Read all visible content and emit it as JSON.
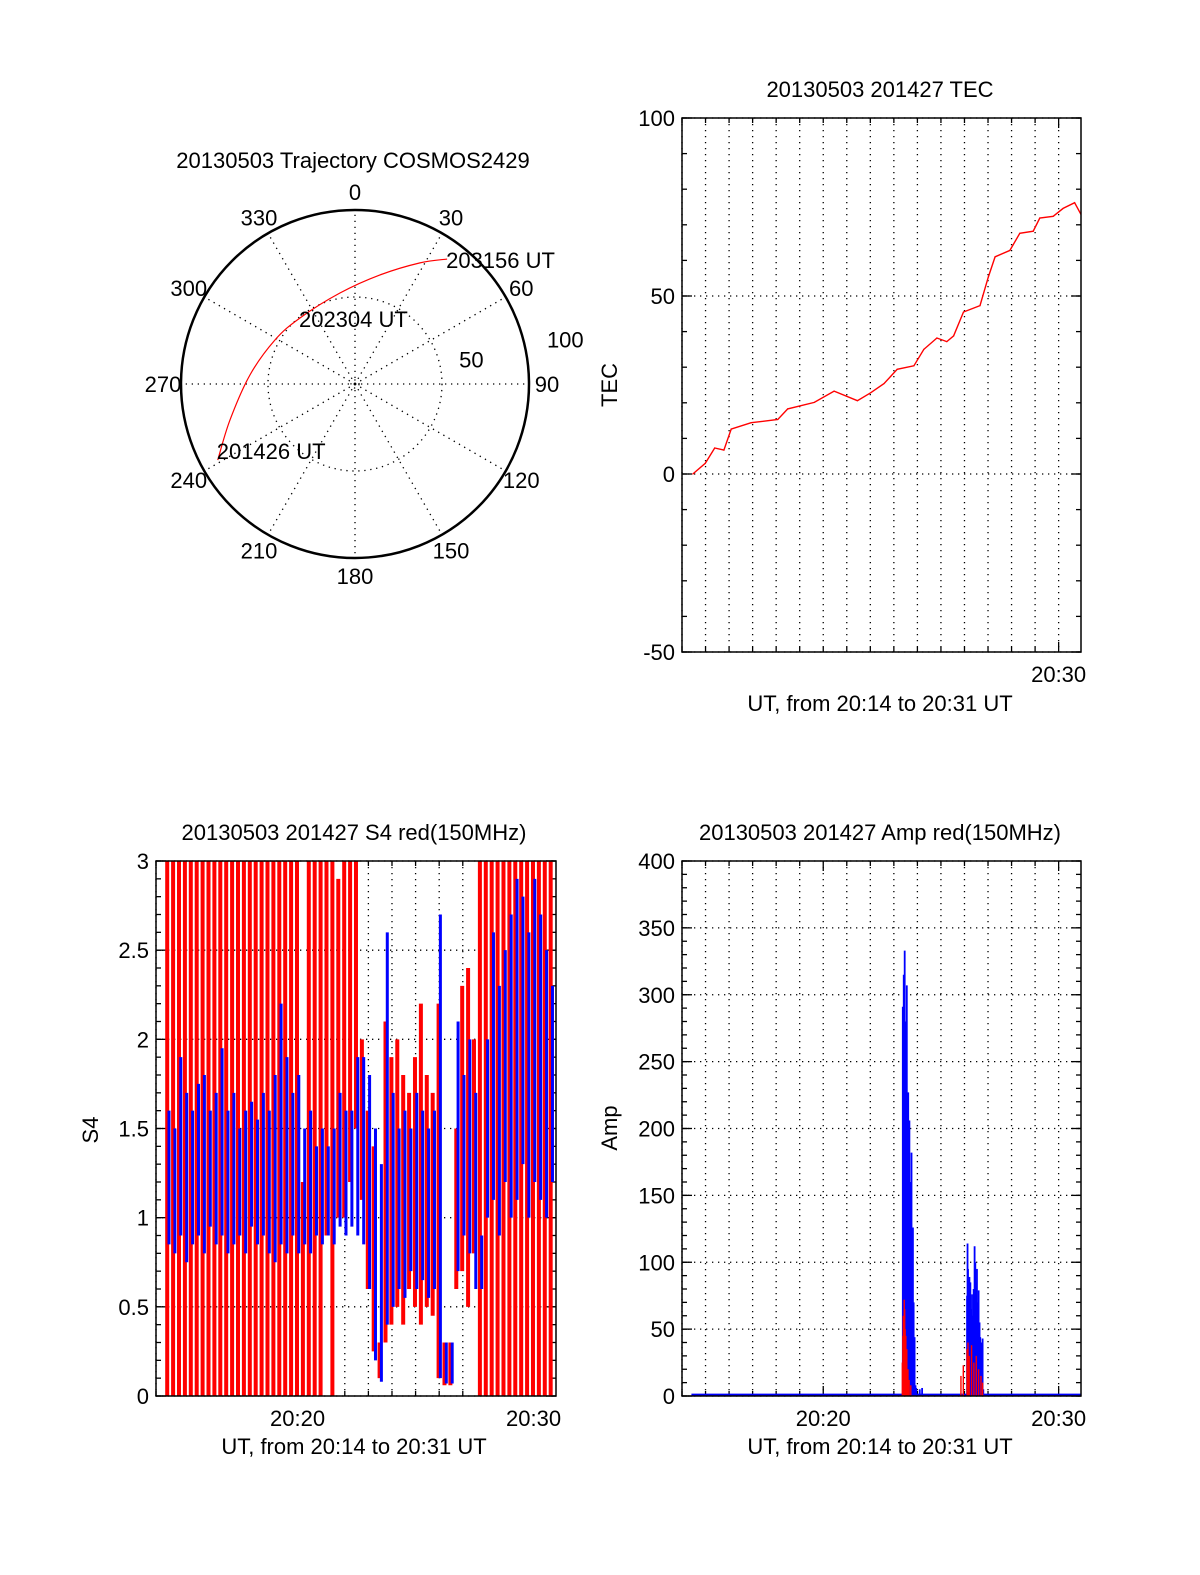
{
  "colors": {
    "red": "#ff0000",
    "blue": "#0000ff",
    "axis": "#000000"
  },
  "chart_data": [
    {
      "id": "polar",
      "type": "polar-trajectory",
      "title": "20130503 Trajectory COSMOS2429",
      "azimuth_labels": [
        "0",
        "30",
        "60",
        "90",
        "120",
        "150",
        "180",
        "210",
        "240",
        "270",
        "300",
        "330"
      ],
      "azimuths": [
        0,
        30,
        60,
        90,
        120,
        150,
        180,
        210,
        240,
        270,
        300,
        330
      ],
      "radial_max": 100,
      "radial_rings": [
        50,
        100
      ],
      "radial_labels": [
        "50",
        "100"
      ],
      "series": [
        {
          "name": "trajectory",
          "color": "#ff0000",
          "points": [
            [
              241.0,
              90.2
            ],
            [
              253.9,
              74.8
            ],
            [
              274.9,
              60.6
            ],
            [
              298.8,
              52.5
            ],
            [
              320.2,
              49.4
            ],
            [
              350.6,
              53.0
            ],
            [
              12.9,
              64.3
            ],
            [
              28.2,
              79.0
            ],
            [
              36.4,
              89.2
            ]
          ]
        }
      ],
      "time_labels": [
        {
          "label": "201426 UT",
          "az": 241.0,
          "r": 90.2
        },
        {
          "label": "202304 UT",
          "az": 320.2,
          "r": 49.4
        },
        {
          "label": "203156 UT",
          "az": 36.4,
          "r": 89.2
        }
      ]
    },
    {
      "id": "tec",
      "type": "line",
      "title": "20130503 201427 TEC",
      "xlabel": "UT, from 20:14 to 20:31 UT",
      "ylabel": "TEC",
      "xunit": "minutes after 20:00",
      "xlim": [
        14.0,
        30.95
      ],
      "ylim": [
        -50,
        100
      ],
      "yticks": [
        -50,
        0,
        50,
        100
      ],
      "ytick_labels": [
        "-50",
        "0",
        "50",
        "100"
      ],
      "yminor": 10,
      "xticks": [
        30
      ],
      "xtick_labels": [
        "20:30"
      ],
      "grid": true,
      "series": [
        {
          "name": "TEC",
          "color": "#ff0000",
          "points": [
            [
              14.46,
              0
            ],
            [
              14.99,
              3
            ],
            [
              15.39,
              7.3
            ],
            [
              15.78,
              6.7
            ],
            [
              16.09,
              12.6
            ],
            [
              16.94,
              14.4
            ],
            [
              18.07,
              15.3
            ],
            [
              18.49,
              18.3
            ],
            [
              19.62,
              20.1
            ],
            [
              20.46,
              23.3
            ],
            [
              21.45,
              20.6
            ],
            [
              22.01,
              22.8
            ],
            [
              22.58,
              25.4
            ],
            [
              23.14,
              29.4
            ],
            [
              23.85,
              30.4
            ],
            [
              24.27,
              35.0
            ],
            [
              24.83,
              38.2
            ],
            [
              25.25,
              37.2
            ],
            [
              25.54,
              38.8
            ],
            [
              25.96,
              45.5
            ],
            [
              26.66,
              47.3
            ],
            [
              27.01,
              55.3
            ],
            [
              27.3,
              61.0
            ],
            [
              27.93,
              62.8
            ],
            [
              28.35,
              67.6
            ],
            [
              28.92,
              68.2
            ],
            [
              29.2,
              71.9
            ],
            [
              29.77,
              72.4
            ],
            [
              30.19,
              74.6
            ],
            [
              30.68,
              76.2
            ],
            [
              30.94,
              73.0
            ]
          ]
        }
      ]
    },
    {
      "id": "s4",
      "type": "bar-envelope",
      "title": "20130503 201427 S4 red(150MHz)",
      "xlabel": "UT, from 20:14 to 20:31 UT",
      "ylabel": "S4",
      "xunit": "minutes after 20:00",
      "xlim": [
        14.0,
        30.95
      ],
      "ylim": [
        0,
        3
      ],
      "yticks": [
        0,
        0.5,
        1,
        1.5,
        2,
        2.5,
        3
      ],
      "ytick_labels": [
        "0",
        "0.5",
        "1",
        "1.5",
        "2",
        "2.5",
        "3"
      ],
      "yminor": 0.1,
      "xticks": [
        20,
        30
      ],
      "xtick_labels": [
        "20:20",
        "20:30"
      ],
      "grid": true,
      "bin_start": 14.5,
      "bin_step": 0.25,
      "series": [
        {
          "name": "red",
          "color": "#ff0000",
          "min": [
            0,
            0,
            0,
            0,
            0,
            0,
            0,
            0,
            0,
            0,
            0,
            0,
            0,
            0,
            0,
            0,
            0,
            0,
            0,
            0,
            0,
            0,
            0,
            0,
            0,
            0,
            0,
            0.9,
            0,
            1.0,
            1.0,
            1.2,
            1.5,
            1.1,
            0.6,
            0.25,
            0.1,
            0.3,
            0.4,
            0.5,
            0.4,
            0.6,
            0.5,
            0.4,
            0.5,
            0.45,
            0.1,
            0.06,
            0.06,
            0.6,
            0.7,
            0.5,
            0.8,
            0,
            0,
            0,
            0,
            0,
            0,
            0,
            0,
            0,
            0,
            0,
            0,
            0
          ],
          "max": [
            3,
            3,
            3,
            3,
            3,
            3,
            3,
            3,
            3,
            3,
            3,
            3,
            3,
            3,
            3,
            3,
            3,
            3,
            3,
            3,
            3,
            3,
            3,
            1.2,
            3,
            3,
            3,
            3,
            3,
            2.9,
            3,
            3,
            3,
            2.0,
            1.6,
            1.4,
            0.3,
            2.1,
            1.9,
            2.0,
            1.8,
            1.7,
            1.9,
            2.2,
            1.8,
            1.7,
            2.2,
            0.3,
            0.3,
            1.5,
            2.3,
            2.4,
            2.0,
            3,
            3,
            3,
            3,
            3,
            3,
            3,
            3,
            3,
            3,
            3,
            3,
            3
          ]
        },
        {
          "name": "blue",
          "color": "#0000ff",
          "min": [
            0.85,
            0.8,
            0.9,
            0.75,
            0.85,
            0.9,
            0.8,
            0.95,
            0.85,
            0.9,
            0.8,
            0.85,
            0.9,
            0.8,
            0.95,
            0.85,
            0.9,
            0.8,
            0.75,
            0.85,
            0.8,
            0.9,
            0.8,
            0.85,
            0.8,
            0.9,
            0.85,
            0.9,
            0.85,
            0.95,
            0.9,
            0.95,
            0.9,
            0.85,
            0.6,
            0.2,
            0.08,
            0.4,
            0.5,
            0.6,
            0.55,
            0.7,
            0.6,
            0.65,
            0.55,
            0.6,
            0.1,
            0.07,
            0.07,
            0.7,
            0.9,
            0.8,
            0.6,
            0.6,
            1.0,
            1.1,
            0.9,
            1.2,
            1.0,
            1.1,
            1.3,
            1.0,
            1.2,
            1.1,
            1.0,
            1.2
          ],
          "max": [
            1.6,
            1.5,
            1.9,
            1.7,
            1.6,
            1.75,
            1.8,
            1.6,
            1.7,
            1.95,
            1.6,
            1.7,
            1.5,
            1.6,
            1.65,
            1.55,
            1.7,
            1.6,
            1.8,
            2.2,
            1.9,
            1.7,
            1.8,
            1.5,
            1.6,
            1.4,
            1.5,
            1.4,
            1.5,
            1.7,
            1.6,
            1.6,
            1.9,
            1.9,
            1.8,
            1.5,
            1.3,
            2.6,
            1.7,
            1.5,
            1.6,
            1.5,
            1.7,
            1.6,
            1.5,
            1.6,
            2.7,
            0.3,
            0.3,
            2.1,
            1.8,
            2.0,
            1.7,
            0.9,
            2.0,
            2.6,
            2.3,
            2.5,
            2.7,
            2.9,
            2.8,
            2.6,
            2.9,
            2.7,
            2.5,
            2.3
          ]
        }
      ]
    },
    {
      "id": "amp",
      "type": "bar",
      "title": "20130503 201427 Amp red(150MHz)",
      "xlabel": "UT, from 20:14 to 20:31 UT",
      "ylabel": "Amp",
      "xunit": "minutes after 20:00",
      "xlim": [
        14.0,
        30.95
      ],
      "ylim": [
        0,
        400
      ],
      "yticks": [
        0,
        50,
        100,
        150,
        200,
        250,
        300,
        350,
        400
      ],
      "ytick_labels": [
        "0",
        "50",
        "100",
        "150",
        "200",
        "250",
        "300",
        "350",
        "400"
      ],
      "yminor": 10,
      "xticks": [
        20,
        30
      ],
      "xtick_labels": [
        "20:20",
        "20:30"
      ],
      "grid": true,
      "baseline": {
        "value": 1,
        "from": 14.4,
        "to": 30.95
      },
      "series": [
        {
          "name": "red",
          "color": "#ff0000",
          "points": [
            [
              23.36,
              25
            ],
            [
              23.38,
              45
            ],
            [
              23.4,
              60
            ],
            [
              23.42,
              55
            ],
            [
              23.44,
              72
            ],
            [
              23.46,
              65
            ],
            [
              23.48,
              50
            ],
            [
              23.51,
              45
            ],
            [
              23.55,
              35
            ],
            [
              23.6,
              20
            ],
            [
              23.65,
              12
            ],
            [
              23.72,
              8
            ],
            [
              25.85,
              15
            ],
            [
              25.95,
              23
            ],
            [
              26.11,
              35
            ],
            [
              26.15,
              40
            ],
            [
              26.2,
              30
            ],
            [
              26.3,
              38
            ],
            [
              26.4,
              25
            ],
            [
              26.5,
              30
            ],
            [
              26.6,
              20
            ],
            [
              26.7,
              15
            ],
            [
              26.77,
              10
            ]
          ]
        },
        {
          "name": "blue",
          "color": "#0000ff",
          "points": [
            [
              23.38,
              291
            ],
            [
              23.4,
              230
            ],
            [
              23.42,
              315
            ],
            [
              23.44,
              250
            ],
            [
              23.46,
              333
            ],
            [
              23.48,
              240
            ],
            [
              23.51,
              280
            ],
            [
              23.53,
              200
            ],
            [
              23.55,
              307
            ],
            [
              23.58,
              180
            ],
            [
              23.61,
              227
            ],
            [
              23.64,
              150
            ],
            [
              23.66,
              206
            ],
            [
              23.69,
              140
            ],
            [
              23.71,
              160
            ],
            [
              23.73,
              120
            ],
            [
              23.75,
              182
            ],
            [
              23.78,
              100
            ],
            [
              23.81,
              126
            ],
            [
              23.84,
              70
            ],
            [
              23.88,
              44
            ],
            [
              23.92,
              8
            ],
            [
              23.95,
              6
            ],
            [
              24.1,
              5
            ],
            [
              24.2,
              6
            ],
            [
              26.11,
              75
            ],
            [
              26.13,
              114
            ],
            [
              26.15,
              95
            ],
            [
              26.18,
              80
            ],
            [
              26.21,
              89
            ],
            [
              26.23,
              70
            ],
            [
              26.25,
              85
            ],
            [
              26.28,
              65
            ],
            [
              26.32,
              76
            ],
            [
              26.36,
              60
            ],
            [
              26.39,
              80
            ],
            [
              26.43,
              112
            ],
            [
              26.46,
              100
            ],
            [
              26.5,
              85
            ],
            [
              26.53,
              95
            ],
            [
              26.57,
              70
            ],
            [
              26.6,
              79
            ],
            [
              26.64,
              55
            ],
            [
              26.67,
              44
            ],
            [
              26.72,
              40
            ],
            [
              26.77,
              43
            ],
            [
              26.8,
              5
            ]
          ]
        }
      ]
    }
  ]
}
